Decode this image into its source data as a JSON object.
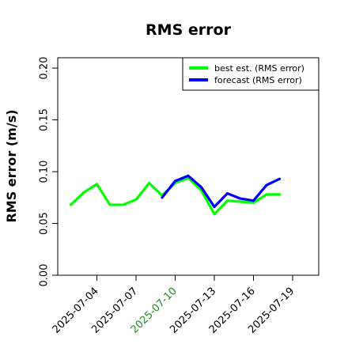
{
  "colors": {
    "text": "#000000",
    "axis": "#000000",
    "best_series": "#00ff00",
    "forecast_series": "#0000ff",
    "highlight_tick": "#228b22"
  },
  "chart_data": {
    "type": "line",
    "title": "RMS error",
    "xlabel": "",
    "ylabel": "RMS error (m/s)",
    "ylim": [
      0.0,
      0.21
    ],
    "y_ticks": [
      {
        "value": 0.0,
        "label": "0.00"
      },
      {
        "value": 0.05,
        "label": "0.05"
      },
      {
        "value": 0.1,
        "label": "0.10"
      },
      {
        "value": 0.15,
        "label": "0.15"
      },
      {
        "value": 0.2,
        "label": "0.20"
      }
    ],
    "xlim": [
      "2025-07-01",
      "2025-07-21"
    ],
    "x_ticks": [
      {
        "value": "2025-07-04",
        "label": "2025-07-04",
        "highlight": false
      },
      {
        "value": "2025-07-07",
        "label": "2025-07-07",
        "highlight": false
      },
      {
        "value": "2025-07-10",
        "label": "2025-07-10",
        "highlight": true
      },
      {
        "value": "2025-07-13",
        "label": "2025-07-13",
        "highlight": false
      },
      {
        "value": "2025-07-16",
        "label": "2025-07-16",
        "highlight": false
      },
      {
        "value": "2025-07-19",
        "label": "2025-07-19",
        "highlight": false
      }
    ],
    "legend_position": "top-right",
    "series": [
      {
        "name": "best est. (RMS error)",
        "color": "#00ff00",
        "points": [
          {
            "x": "2025-07-02",
            "y": 0.068
          },
          {
            "x": "2025-07-03",
            "y": 0.08
          },
          {
            "x": "2025-07-04",
            "y": 0.088
          },
          {
            "x": "2025-07-05",
            "y": 0.068
          },
          {
            "x": "2025-07-06",
            "y": 0.068
          },
          {
            "x": "2025-07-07",
            "y": 0.073
          },
          {
            "x": "2025-07-08",
            "y": 0.089
          },
          {
            "x": "2025-07-09",
            "y": 0.077
          },
          {
            "x": "2025-07-10",
            "y": 0.089
          },
          {
            "x": "2025-07-11",
            "y": 0.094
          },
          {
            "x": "2025-07-12",
            "y": 0.082
          },
          {
            "x": "2025-07-13",
            "y": 0.059
          },
          {
            "x": "2025-07-14",
            "y": 0.072
          },
          {
            "x": "2025-07-15",
            "y": 0.071
          },
          {
            "x": "2025-07-16",
            "y": 0.07
          },
          {
            "x": "2025-07-17",
            "y": 0.078
          },
          {
            "x": "2025-07-18",
            "y": 0.078
          }
        ]
      },
      {
        "name": "forecast (RMS error)",
        "color": "#0000ff",
        "points": [
          {
            "x": "2025-07-09",
            "y": 0.075
          },
          {
            "x": "2025-07-10",
            "y": 0.091
          },
          {
            "x": "2025-07-11",
            "y": 0.096
          },
          {
            "x": "2025-07-12",
            "y": 0.085
          },
          {
            "x": "2025-07-13",
            "y": 0.066
          },
          {
            "x": "2025-07-14",
            "y": 0.079
          },
          {
            "x": "2025-07-15",
            "y": 0.074
          },
          {
            "x": "2025-07-16",
            "y": 0.072
          },
          {
            "x": "2025-07-17",
            "y": 0.087
          },
          {
            "x": "2025-07-18",
            "y": 0.093
          }
        ]
      }
    ]
  }
}
